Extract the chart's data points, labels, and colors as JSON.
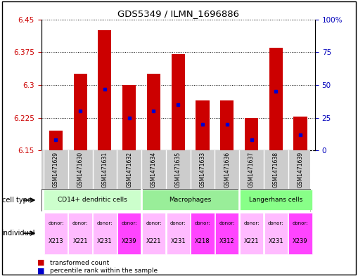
{
  "title": "GDS5349 / ILMN_1696886",
  "samples": [
    "GSM1471629",
    "GSM1471630",
    "GSM1471631",
    "GSM1471632",
    "GSM1471634",
    "GSM1471635",
    "GSM1471633",
    "GSM1471636",
    "GSM1471637",
    "GSM1471638",
    "GSM1471639"
  ],
  "bar_tops": [
    6.195,
    6.325,
    6.425,
    6.3,
    6.325,
    6.37,
    6.265,
    6.265,
    6.225,
    6.385,
    6.228
  ],
  "bar_bottom": 6.15,
  "blue_marker_values": [
    6.175,
    6.24,
    6.29,
    6.225,
    6.24,
    6.255,
    6.21,
    6.21,
    6.175,
    6.285,
    6.185
  ],
  "ylim_left": [
    6.15,
    6.45
  ],
  "yticks_left": [
    6.15,
    6.225,
    6.3,
    6.375,
    6.45
  ],
  "ytick_labels_left": [
    "6.15",
    "6.225",
    "6.3",
    "6.375",
    "6.45"
  ],
  "yticks_right": [
    0,
    25,
    50,
    75,
    100
  ],
  "ytick_labels_right": [
    "0",
    "25",
    "50",
    "75",
    "100%"
  ],
  "ylim_right": [
    0,
    100
  ],
  "cell_type_groups": [
    {
      "label": "CD14+ dendritic cells",
      "start": 0,
      "end": 4,
      "color": "#ccffcc"
    },
    {
      "label": "Macrophages",
      "start": 4,
      "end": 8,
      "color": "#99ee99"
    },
    {
      "label": "Langerhans cells",
      "start": 8,
      "end": 11,
      "color": "#99ff99"
    }
  ],
  "donors": [
    "X213",
    "X221",
    "X231",
    "X239",
    "X221",
    "X231",
    "X218",
    "X312",
    "X221",
    "X231",
    "X239"
  ],
  "donor_highlight": [
    false,
    false,
    false,
    true,
    false,
    false,
    true,
    true,
    false,
    false,
    true
  ],
  "bar_color": "#cc0000",
  "blue_color": "#0000cc",
  "grid_color": "#000000",
  "sample_bg_color": "#cccccc",
  "label_color_left": "#cc0000",
  "label_color_right": "#0000bb",
  "donor_color_normal": "#ffbbff",
  "donor_color_highlight": "#ff44ff"
}
